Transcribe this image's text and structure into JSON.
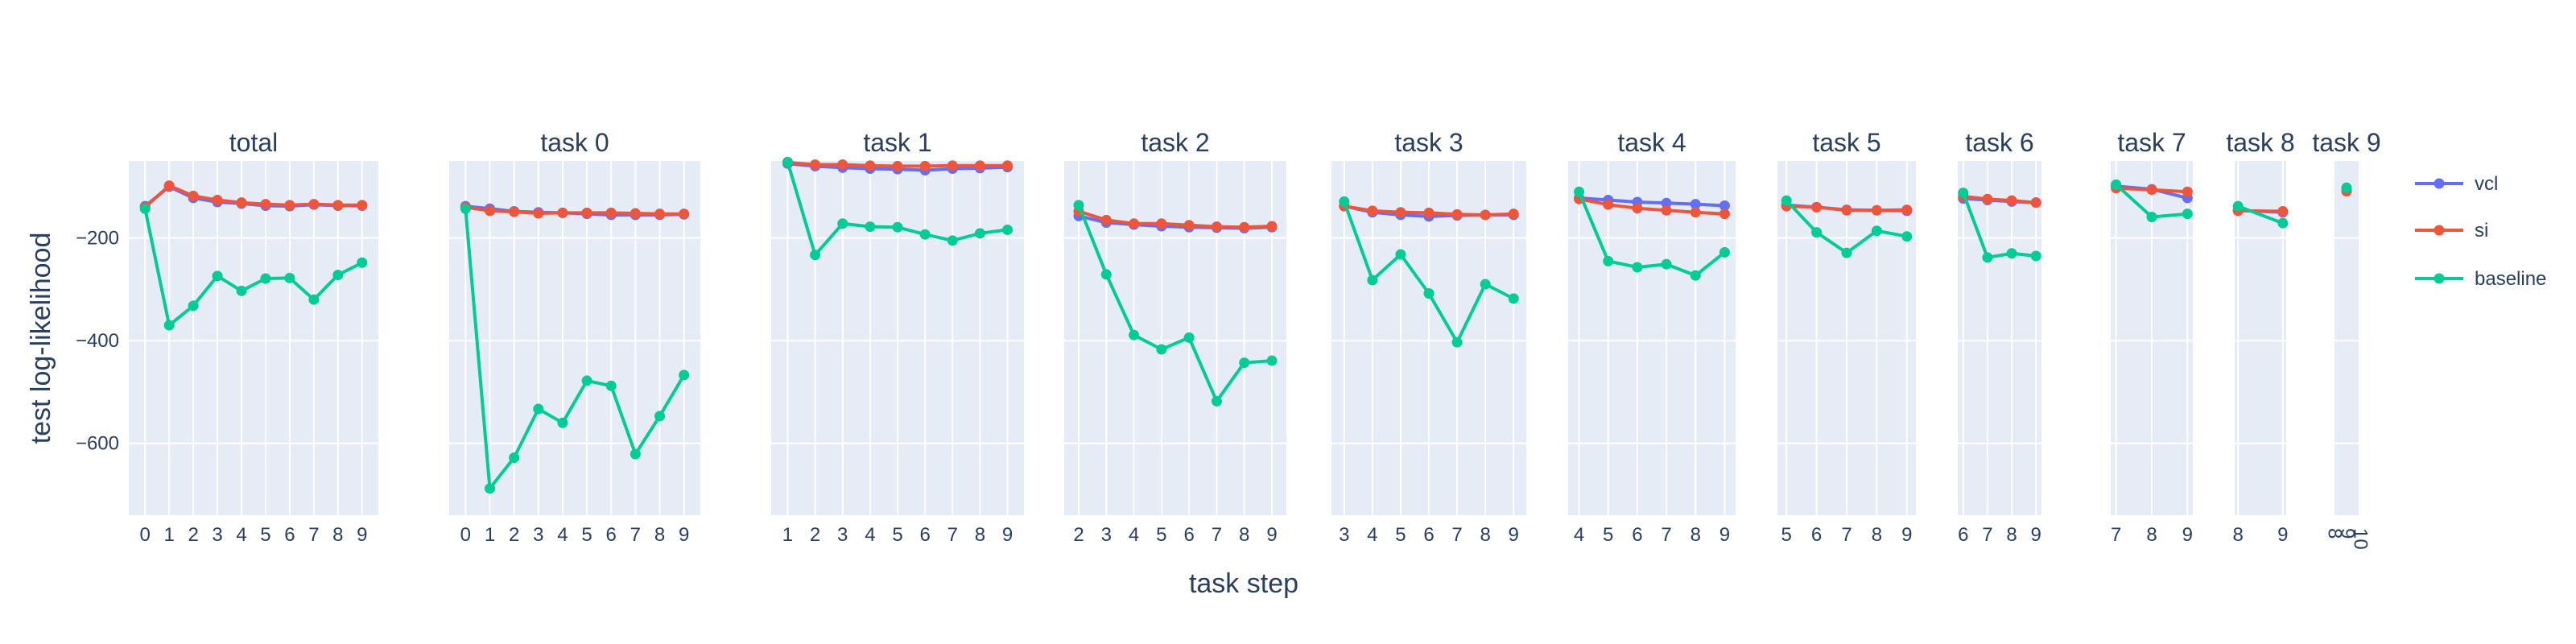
{
  "chart_data": {
    "type": "line",
    "xlabel": "task step",
    "ylabel": "test log-likelihood",
    "ylim": [
      -740,
      -50
    ],
    "yticks": [
      -200,
      -400,
      -600
    ],
    "grid": true,
    "legend_position": "right",
    "colors": {
      "vcl": "#636efa",
      "si": "#ef553b",
      "baseline": "#00cc96",
      "panel_bg": "#e5ecf6",
      "text": "#2a3f5f"
    },
    "legend": [
      "vcl",
      "si",
      "baseline"
    ],
    "panels": [
      {
        "title": "total",
        "x": [
          0,
          1,
          2,
          3,
          4,
          5,
          6,
          7,
          8,
          9
        ],
        "x_tick_labels": [
          "0",
          "1",
          "2",
          "3",
          "4",
          "5",
          "6",
          "7",
          "8",
          "9"
        ],
        "series": [
          {
            "name": "vcl",
            "values": [
              -138,
              -100,
              -122,
              -130,
              -133,
              -137,
              -138,
              -135,
              -137,
              -137
            ]
          },
          {
            "name": "si",
            "values": [
              -140,
              -98,
              -118,
              -126,
              -131,
              -134,
              -136,
              -134,
              -136,
              -136
            ]
          },
          {
            "name": "baseline",
            "values": [
              -143,
              -370,
              -332,
              -274,
              -303,
              -279,
              -278,
              -320,
              -272,
              -248
            ]
          }
        ]
      },
      {
        "title": "task 0",
        "x": [
          0,
          1,
          2,
          3,
          4,
          5,
          6,
          7,
          8,
          9
        ],
        "x_tick_labels": [
          "0",
          "1",
          "2",
          "3",
          "4",
          "5",
          "6",
          "7",
          "8",
          "9"
        ],
        "series": [
          {
            "name": "vcl",
            "values": [
              -138,
              -143,
              -148,
              -150,
              -151,
              -153,
              -155,
              -155,
              -155,
              -154
            ]
          },
          {
            "name": "si",
            "values": [
              -140,
              -147,
              -149,
              -152,
              -151,
              -151,
              -151,
              -152,
              -153,
              -153
            ]
          },
          {
            "name": "baseline",
            "values": [
              -143,
              -688,
              -628,
              -533,
              -560,
              -478,
              -488,
              -621,
              -547,
              -467
            ]
          }
        ]
      },
      {
        "title": "task 1",
        "x": [
          1,
          2,
          3,
          4,
          5,
          6,
          7,
          8,
          9
        ],
        "x_tick_labels": [
          "1",
          "2",
          "3",
          "4",
          "5",
          "6",
          "7",
          "8",
          "9"
        ],
        "series": [
          {
            "name": "vcl",
            "values": [
              -55,
              -60,
              -63,
              -65,
              -66,
              -68,
              -65,
              -64,
              -62
            ]
          },
          {
            "name": "si",
            "values": [
              -53,
              -57,
              -57,
              -59,
              -60,
              -60,
              -59,
              -59,
              -59
            ]
          },
          {
            "name": "baseline",
            "values": [
              -52,
              -233,
              -172,
              -178,
              -179,
              -193,
              -205,
              -191,
              -184
            ]
          }
        ]
      },
      {
        "title": "task 2",
        "x": [
          2,
          3,
          4,
          5,
          6,
          7,
          8,
          9
        ],
        "x_tick_labels": [
          "2",
          "3",
          "4",
          "5",
          "6",
          "7",
          "8",
          "9"
        ],
        "series": [
          {
            "name": "vcl",
            "values": [
              -157,
              -170,
              -174,
              -177,
              -179,
              -180,
              -181,
              -179
            ]
          },
          {
            "name": "si",
            "values": [
              -148,
              -165,
              -172,
              -172,
              -175,
              -178,
              -179,
              -177
            ]
          },
          {
            "name": "baseline",
            "values": [
              -136,
              -271,
              -389,
              -417,
              -394,
              -518,
              -443,
              -439
            ]
          }
        ]
      },
      {
        "title": "task 3",
        "x": [
          3,
          4,
          5,
          6,
          7,
          8,
          9
        ],
        "x_tick_labels": [
          "3",
          "4",
          "5",
          "6",
          "7",
          "8",
          "9"
        ],
        "series": [
          {
            "name": "vcl",
            "values": [
              -138,
              -150,
              -155,
              -158,
              -156,
              -155,
              -155
            ]
          },
          {
            "name": "si",
            "values": [
              -138,
              -147,
              -150,
              -151,
              -154,
              -155,
              -153
            ]
          },
          {
            "name": "baseline",
            "values": [
              -129,
              -282,
              -232,
              -308,
              -403,
              -290,
              -318
            ]
          }
        ]
      },
      {
        "title": "task 4",
        "x": [
          4,
          5,
          6,
          7,
          8,
          9
        ],
        "x_tick_labels": [
          "4",
          "5",
          "6",
          "7",
          "8",
          "9"
        ],
        "series": [
          {
            "name": "vcl",
            "values": [
              -122,
              -126,
              -130,
              -132,
              -134,
              -137
            ]
          },
          {
            "name": "si",
            "values": [
              -124,
              -135,
              -142,
              -146,
              -150,
              -153
            ]
          },
          {
            "name": "baseline",
            "values": [
              -110,
              -245,
              -257,
              -251,
              -273,
              -228
            ]
          }
        ]
      },
      {
        "title": "task 5",
        "x": [
          5,
          6,
          7,
          8,
          9
        ],
        "x_tick_labels": [
          "5",
          "6",
          "7",
          "8",
          "9"
        ],
        "series": [
          {
            "name": "vcl",
            "values": [
              -136,
              -140,
              -145,
              -146,
              -147
            ]
          },
          {
            "name": "si",
            "values": [
              -138,
              -140,
              -146,
              -146,
              -145
            ]
          },
          {
            "name": "baseline",
            "values": [
              -127,
              -189,
              -229,
              -186,
              -197
            ]
          }
        ]
      },
      {
        "title": "task 6",
        "x": [
          6,
          7,
          8,
          9
        ],
        "x_tick_labels": [
          "6",
          "7",
          "8",
          "9"
        ],
        "series": [
          {
            "name": "vcl",
            "values": [
              -123,
              -126,
              -129,
              -131
            ]
          },
          {
            "name": "si",
            "values": [
              -119,
              -124,
              -127,
              -131
            ]
          },
          {
            "name": "baseline",
            "values": [
              -112,
              -238,
              -230,
              -235
            ]
          }
        ]
      },
      {
        "title": "task 7",
        "x": [
          7,
          8,
          9
        ],
        "x_tick_labels": [
          "7",
          "8",
          "9"
        ],
        "series": [
          {
            "name": "vcl",
            "values": [
              -99,
              -105,
              -122
            ]
          },
          {
            "name": "si",
            "values": [
              -103,
              -106,
              -110
            ]
          },
          {
            "name": "baseline",
            "values": [
              -96,
              -159,
              -153
            ]
          }
        ]
      },
      {
        "title": "task 8",
        "x": [
          8,
          9
        ],
        "x_tick_labels": [
          "8",
          "9"
        ],
        "series": [
          {
            "name": "vcl",
            "values": [
              -146,
              -150
            ]
          },
          {
            "name": "si",
            "values": [
              -147,
              -148
            ]
          },
          {
            "name": "baseline",
            "values": [
              -138,
              -171
            ]
          }
        ]
      },
      {
        "title": "task 9",
        "x": [
          9
        ],
        "x_tick_labels": [
          "8",
          "9",
          "10"
        ],
        "series": [
          {
            "name": "vcl",
            "values": [
              -106
            ]
          },
          {
            "name": "si",
            "values": [
              -109
            ]
          },
          {
            "name": "baseline",
            "values": [
              -102
            ]
          }
        ]
      }
    ]
  }
}
